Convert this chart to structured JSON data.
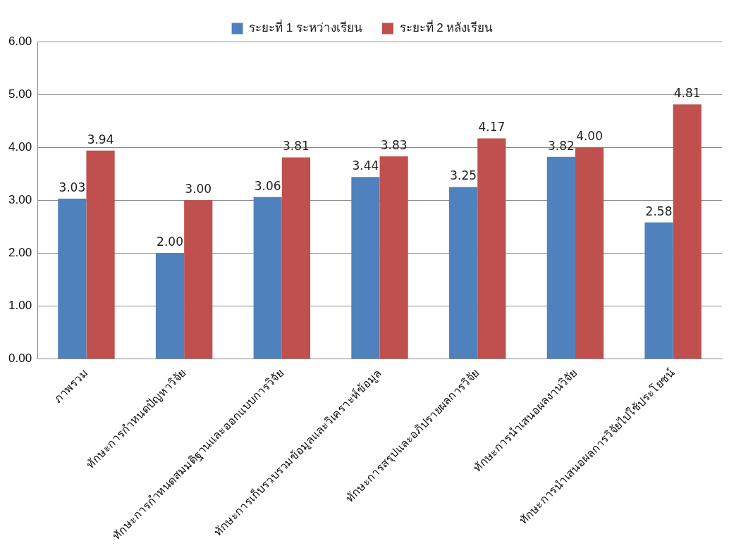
{
  "chart_data": {
    "type": "bar",
    "categories": [
      "ภาพรวม",
      "ทักษะการกำหนดปัญหาวิจัย",
      "ทักษะการกำหนดสมมติฐานและออกแบบการวิจัย",
      "ทักษะการเก็บรวบรวมข้อมูลและวิเคราะห์ข้อมูล",
      "ทักษะการสรุปและอภิปรายผลการวิจัย",
      "ทักษะการนำเสนอผลงานวิจัย",
      "ทักษะการนำเสนอผลการวิจัยไปใช้ประโยชน์"
    ],
    "series": [
      {
        "name": "ระยะที่ 1 ระหว่างเรียน",
        "color": "#4f81bd",
        "values": [
          3.03,
          2.0,
          3.06,
          3.44,
          3.25,
          3.82,
          2.58
        ],
        "value_labels": [
          "3.03",
          "2.00",
          "3.06",
          "3.44",
          "3.25",
          "3.82",
          "2.58"
        ]
      },
      {
        "name": "ระยะที่ 2 หลังเรียน",
        "color": "#c0504d",
        "values": [
          3.94,
          3.0,
          3.81,
          3.83,
          4.17,
          4.0,
          4.81
        ],
        "value_labels": [
          "3.94",
          "3.00",
          "3.81",
          "3.83",
          "4.17",
          "4.00",
          "4.81"
        ]
      }
    ],
    "ylim": [
      0,
      6
    ],
    "yticks": [
      {
        "value": 0,
        "label": "0.00"
      },
      {
        "value": 1,
        "label": "1.00"
      },
      {
        "value": 2,
        "label": "2.00"
      },
      {
        "value": 3,
        "label": "3.00"
      },
      {
        "value": 4,
        "label": "4.00"
      },
      {
        "value": 5,
        "label": "5.00"
      },
      {
        "value": 6,
        "label": "6.00"
      }
    ],
    "grid": "y",
    "legend": "top"
  }
}
